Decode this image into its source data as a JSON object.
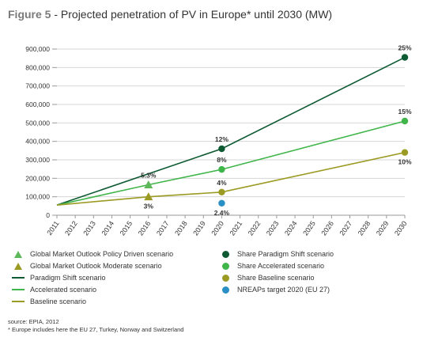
{
  "title": {
    "figure_label": "Figure 5",
    "text": " - Projected penetration of PV in Europe* until 2030 (MW)"
  },
  "chart_data": {
    "type": "line",
    "x_ticks": [
      "2011",
      "2012",
      "2013",
      "2014",
      "2015",
      "2016",
      "2017",
      "2018",
      "2019",
      "2020",
      "2021",
      "2022",
      "2023",
      "2024",
      "2025",
      "2026",
      "2027",
      "2028",
      "2029",
      "2030"
    ],
    "ylim": [
      0,
      900000
    ],
    "y_ticks": [
      {
        "value": 0,
        "label": "0"
      },
      {
        "value": 100000,
        "label": "100,000"
      },
      {
        "value": 200000,
        "label": "200,000"
      },
      {
        "value": 300000,
        "label": "300,000"
      },
      {
        "value": 400000,
        "label": "400,000"
      },
      {
        "value": 500000,
        "label": "500,000"
      },
      {
        "value": 600000,
        "label": "600,000"
      },
      {
        "value": 700000,
        "label": "700,000"
      },
      {
        "value": 800000,
        "label": "800,000"
      },
      {
        "value": 900000,
        "label": "900,000"
      }
    ],
    "grid": true,
    "series": [
      {
        "name": "Paradigm Shift scenario",
        "color": "#0e5a32",
        "points": [
          [
            2011,
            55000
          ],
          [
            2020,
            360000
          ],
          [
            2030,
            855000
          ]
        ]
      },
      {
        "name": "Accelerated scenario",
        "color": "#3fb54a",
        "points": [
          [
            2011,
            55000
          ],
          [
            2016,
            165000
          ],
          [
            2020,
            248000
          ],
          [
            2030,
            510000
          ]
        ]
      },
      {
        "name": "Baseline scenario",
        "color": "#9b9a22",
        "points": [
          [
            2011,
            55000
          ],
          [
            2016,
            100000
          ],
          [
            2020,
            125000
          ],
          [
            2030,
            340000
          ]
        ]
      }
    ],
    "markers": [
      {
        "x": 2016,
        "y": 165000,
        "shape": "triangle",
        "color": "#5db85a"
      },
      {
        "x": 2016,
        "y": 100000,
        "shape": "triangle",
        "color": "#9b9a22"
      },
      {
        "x": 2020,
        "y": 360000,
        "shape": "circle",
        "color": "#0e5a32"
      },
      {
        "x": 2030,
        "y": 855000,
        "shape": "circle",
        "color": "#0e5a32"
      },
      {
        "x": 2020,
        "y": 248000,
        "shape": "circle",
        "color": "#3fb54a"
      },
      {
        "x": 2030,
        "y": 510000,
        "shape": "circle",
        "color": "#3fb54a"
      },
      {
        "x": 2020,
        "y": 125000,
        "shape": "circle",
        "color": "#9b9a22"
      },
      {
        "x": 2030,
        "y": 340000,
        "shape": "circle",
        "color": "#9b9a22"
      },
      {
        "x": 2020,
        "y": 65000,
        "shape": "circle",
        "color": "#2a8fc4"
      }
    ],
    "data_labels": [
      {
        "x": 2016,
        "y": 165000,
        "text": "5.3%",
        "pos": "above"
      },
      {
        "x": 2016,
        "y": 100000,
        "text": "3%",
        "pos": "below"
      },
      {
        "x": 2020,
        "y": 360000,
        "text": "12%",
        "pos": "above"
      },
      {
        "x": 2020,
        "y": 248000,
        "text": "8%",
        "pos": "above"
      },
      {
        "x": 2020,
        "y": 125000,
        "text": "4%",
        "pos": "above"
      },
      {
        "x": 2020,
        "y": 65000,
        "text": "2.4%",
        "pos": "below"
      },
      {
        "x": 2030,
        "y": 855000,
        "text": "25%",
        "pos": "above"
      },
      {
        "x": 2030,
        "y": 510000,
        "text": "15%",
        "pos": "above"
      },
      {
        "x": 2030,
        "y": 340000,
        "text": "10%",
        "pos": "below"
      }
    ]
  },
  "legend": {
    "left": [
      {
        "label": "Global Market Outlook Policy Driven scenario",
        "symbol": "triangle",
        "color": "#5db85a"
      },
      {
        "label": "Global Market Outlook Moderate scenario",
        "symbol": "triangle",
        "color": "#9b9a22"
      },
      {
        "label": "Paradigm Shift scenario",
        "symbol": "line",
        "color": "#0e5a32"
      },
      {
        "label": "Accelerated scenario",
        "symbol": "line",
        "color": "#3fb54a"
      },
      {
        "label": "Baseline scenario",
        "symbol": "line",
        "color": "#9b9a22"
      }
    ],
    "right": [
      {
        "label": "Share Paradigm Shift scenario",
        "symbol": "circle",
        "color": "#0e5a32"
      },
      {
        "label": "Share Accelerated scenario",
        "symbol": "circle",
        "color": "#3fb54a"
      },
      {
        "label": "Share Baseline scenario",
        "symbol": "circle",
        "color": "#9b9a22"
      },
      {
        "label": "NREAPs target 2020 (EU 27)",
        "symbol": "circle",
        "color": "#2a8fc4"
      }
    ]
  },
  "footer": {
    "source": "source: EPIA, 2012",
    "note": "* Europe includes here the EU 27, Turkey, Norway and Switzerland"
  }
}
